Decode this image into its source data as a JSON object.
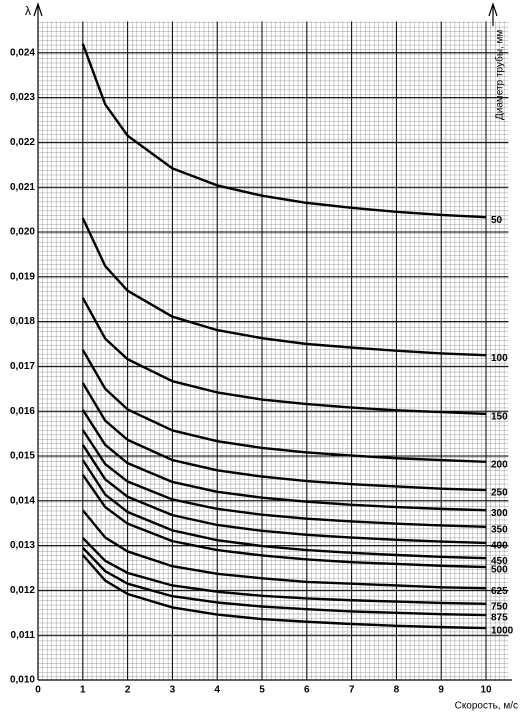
{
  "chart_data": {
    "type": "line",
    "y_label": "λ",
    "x_label": "Скорость, м/с",
    "legend_title": "Диаметр трубы, мм",
    "color": "#000000",
    "grid": true,
    "xlim": [
      0,
      10.5
    ],
    "ylim": [
      0.01,
      0.0247
    ],
    "xticks": [
      0,
      1,
      2,
      3,
      4,
      5,
      6,
      7,
      8,
      9,
      10
    ],
    "yticks": [
      {
        "value": 0.01,
        "label": "0,010"
      },
      {
        "value": 0.011,
        "label": "0,011"
      },
      {
        "value": 0.012,
        "label": "0,012"
      },
      {
        "value": 0.013,
        "label": "0,013"
      },
      {
        "value": 0.014,
        "label": "0,014"
      },
      {
        "value": 0.015,
        "label": "0,015"
      },
      {
        "value": 0.016,
        "label": "0,016"
      },
      {
        "value": 0.017,
        "label": "0,017"
      },
      {
        "value": 0.018,
        "label": "0,018"
      },
      {
        "value": 0.019,
        "label": "0,019"
      },
      {
        "value": 0.02,
        "label": "0,020"
      },
      {
        "value": 0.021,
        "label": "0,021"
      },
      {
        "value": 0.022,
        "label": "0,022"
      },
      {
        "value": 0.023,
        "label": "0,023"
      },
      {
        "value": 0.024,
        "label": "0,024"
      }
    ],
    "x": [
      1,
      1.5,
      2,
      3,
      4,
      5,
      6,
      7,
      8,
      9,
      10
    ],
    "series": [
      {
        "name": "50",
        "values": [
          0.0242,
          0.02285,
          0.02215,
          0.02142,
          0.02104,
          0.02081,
          0.02065,
          0.02054,
          0.02045,
          0.02038,
          0.02033
        ]
      },
      {
        "name": "100",
        "values": [
          0.02031,
          0.01924,
          0.01869,
          0.01811,
          0.01781,
          0.01763,
          0.0175,
          0.01742,
          0.01735,
          0.01729,
          0.01725
        ]
      },
      {
        "name": "150",
        "values": [
          0.01853,
          0.01762,
          0.01716,
          0.01667,
          0.01642,
          0.01626,
          0.01616,
          0.01608,
          0.01602,
          0.01598,
          0.01594
        ]
      },
      {
        "name": "200",
        "values": [
          0.01737,
          0.0165,
          0.01604,
          0.01557,
          0.01533,
          0.01518,
          0.01508,
          0.01501,
          0.01495,
          0.01491,
          0.01487
        ]
      },
      {
        "name": "250",
        "values": [
          0.01663,
          0.01579,
          0.01536,
          0.01491,
          0.01468,
          0.01454,
          0.01444,
          0.01437,
          0.01432,
          0.01427,
          0.01424
        ]
      },
      {
        "name": "300",
        "values": [
          0.01603,
          0.01525,
          0.01484,
          0.01442,
          0.0142,
          0.01407,
          0.01398,
          0.01391,
          0.01386,
          0.01382,
          0.01379
        ]
      },
      {
        "name": "350",
        "values": [
          0.01558,
          0.01482,
          0.01443,
          0.01403,
          0.01382,
          0.01369,
          0.0136,
          0.01354,
          0.01349,
          0.01345,
          0.01342
        ]
      },
      {
        "name": "400",
        "values": [
          0.01525,
          0.01448,
          0.01409,
          0.01368,
          0.01346,
          0.01333,
          0.01324,
          0.01318,
          0.01313,
          0.01309,
          0.01306
        ]
      },
      {
        "name": "450",
        "values": [
          0.01491,
          0.01414,
          0.01375,
          0.01334,
          0.01312,
          0.01299,
          0.0129,
          0.01284,
          0.01279,
          0.01275,
          0.01272
        ]
      },
      {
        "name": "500",
        "values": [
          0.01458,
          0.01386,
          0.01349,
          0.0131,
          0.0129,
          0.01278,
          0.01269,
          0.01263,
          0.01259,
          0.01255,
          0.01252
        ]
      },
      {
        "name": "625",
        "values": [
          0.01379,
          0.01318,
          0.01287,
          0.01254,
          0.01237,
          0.01227,
          0.01219,
          0.01215,
          0.01211,
          0.01207,
          0.01205
        ]
      },
      {
        "name": "750",
        "values": [
          0.01317,
          0.01266,
          0.01239,
          0.01211,
          0.01197,
          0.01188,
          0.01182,
          0.01178,
          0.01175,
          0.01172,
          0.0117
        ]
      },
      {
        "name": "875",
        "values": [
          0.01295,
          0.01243,
          0.01215,
          0.01187,
          0.01173,
          0.01164,
          0.01158,
          0.01153,
          0.0115,
          0.01147,
          0.01145
        ]
      },
      {
        "name": "1000",
        "values": [
          0.01279,
          0.01222,
          0.01192,
          0.01162,
          0.01146,
          0.01136,
          0.0113,
          0.01125,
          0.01121,
          0.01118,
          0.01116
        ]
      }
    ]
  }
}
